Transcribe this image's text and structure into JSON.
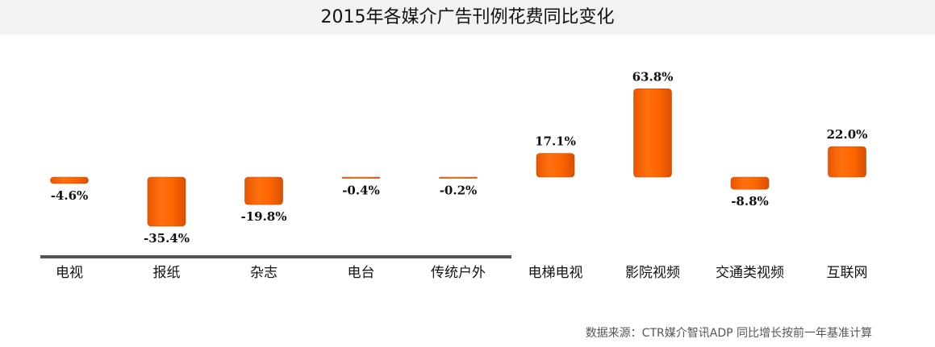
{
  "chart_data": {
    "type": "bar",
    "title": "2015年各媒介广告刊例花费同比变化",
    "categories": [
      "电视",
      "报纸",
      "杂志",
      "电台",
      "传统户外",
      "电梯电视",
      "影院视频",
      "交通类视频",
      "互联网"
    ],
    "values": [
      -4.6,
      -35.4,
      -19.8,
      -0.4,
      -0.2,
      17.1,
      63.8,
      -8.8,
      22.0
    ],
    "value_labels": [
      "-4.6%",
      "-35.4%",
      "-19.8%",
      "-0.4%",
      "-0.2%",
      "17.1%",
      "63.8%",
      "-8.8%",
      "22.0%"
    ],
    "xlabel": "",
    "ylabel": "",
    "ylim": [
      -60,
      70
    ],
    "bar_color": "#ff6600",
    "grid": false,
    "legend": "none"
  },
  "source_note": "数据来源：CTR媒介智讯ADP 同比增长按前一年基准计算"
}
